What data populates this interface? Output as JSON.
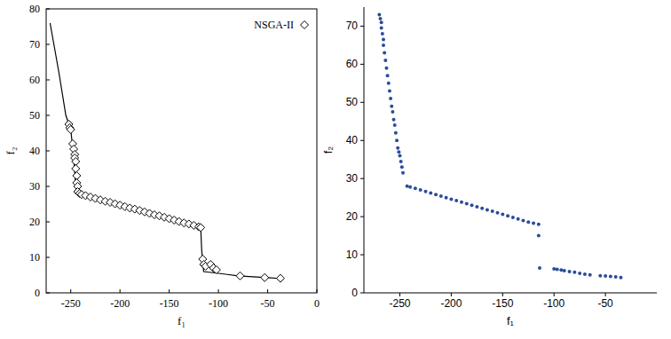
{
  "chart_data": [
    {
      "type": "line",
      "xlabel": "f₁",
      "ylabel": "f₂",
      "xlim": [
        -275,
        0
      ],
      "xticks": [
        -250,
        -200,
        -150,
        -100,
        -50,
        0
      ],
      "ylim": [
        0,
        80
      ],
      "yticks": [
        0,
        10,
        20,
        30,
        40,
        50,
        60,
        70,
        80
      ],
      "grid": false,
      "legend": "upper right",
      "series": [
        {
          "type": "line",
          "color": "#000000",
          "line_style": "solid",
          "x": [
            -271,
            -262,
            -255,
            -250,
            -247,
            -245,
            -243,
            -118,
            -117,
            -115,
            -100,
            -80,
            -50,
            -35
          ],
          "values": [
            76,
            62,
            50,
            46,
            38,
            30,
            28,
            18.5,
            12,
            6,
            5.5,
            4.8,
            4.3,
            4
          ]
        },
        {
          "name": "NSGA-II",
          "type": "scatter",
          "marker": "diamond",
          "color": "#000000",
          "x": [
            -252,
            -251,
            -250,
            -248,
            -247,
            -246,
            -246,
            -245,
            -245,
            -244,
            -244,
            -243,
            -243,
            -241,
            -239,
            -235,
            -230,
            -225,
            -220,
            -215,
            -210,
            -205,
            -200,
            -195,
            -190,
            -185,
            -180,
            -175,
            -170,
            -165,
            -160,
            -155,
            -150,
            -145,
            -140,
            -135,
            -130,
            -125,
            -120,
            -118,
            -116,
            -115,
            -113,
            -108,
            -105,
            -102,
            -78,
            -53,
            -37
          ],
          "values": [
            47.5,
            46.5,
            46,
            42,
            40.5,
            39,
            38,
            37,
            35,
            33,
            31,
            30,
            28.5,
            28,
            27.7,
            27.4,
            27.0,
            26.6,
            26.2,
            25.8,
            25.5,
            25.1,
            24.7,
            24.3,
            23.9,
            23.6,
            23.2,
            22.8,
            22.4,
            22.0,
            21.7,
            21.3,
            20.9,
            20.5,
            20.1,
            19.7,
            19.4,
            19.0,
            18.6,
            18.4,
            9.5,
            8,
            7.5,
            8,
            7,
            6.5,
            4.8,
            4.3,
            4.1
          ]
        }
      ]
    },
    {
      "type": "scatter",
      "xlabel": "f₁",
      "ylabel": "f₂",
      "xlim": [
        -285,
        0
      ],
      "xticks": [
        -250,
        -200,
        -150,
        -100,
        -50
      ],
      "ylim": [
        0,
        75
      ],
      "yticks": [
        0,
        10,
        20,
        30,
        40,
        50,
        60,
        70
      ],
      "grid": false,
      "series": [
        {
          "type": "scatter",
          "marker": "circle",
          "color": "#2b4c9b",
          "x": [
            -270,
            -269,
            -268,
            -268,
            -267,
            -266,
            -266,
            -265,
            -264,
            -263,
            -262,
            -261,
            -260,
            -259,
            -258,
            -257,
            -256,
            -255,
            -254,
            -253,
            -252,
            -251,
            -250,
            -249,
            -248,
            -247,
            -243,
            -240,
            -235,
            -230,
            -225,
            -220,
            -215,
            -210,
            -205,
            -200,
            -195,
            -190,
            -185,
            -180,
            -175,
            -170,
            -165,
            -160,
            -155,
            -150,
            -145,
            -140,
            -135,
            -130,
            -125,
            -120,
            -115,
            -115,
            -114,
            -100,
            -97,
            -93,
            -90,
            -85,
            -80,
            -75,
            -70,
            -65,
            -55,
            -50,
            -45,
            -40,
            -35
          ],
          "values": [
            73,
            72,
            71,
            69.5,
            68,
            66.5,
            65,
            63,
            61,
            59,
            57,
            55,
            53,
            51,
            49,
            47.5,
            45.5,
            44,
            42,
            40,
            38,
            37,
            36,
            34.5,
            33,
            31.5,
            28,
            27.8,
            27.4,
            27,
            26.6,
            26.2,
            25.8,
            25.4,
            25,
            24.6,
            24.2,
            23.8,
            23.4,
            23,
            22.6,
            22.2,
            21.8,
            21.4,
            21,
            20.6,
            20.2,
            19.8,
            19.4,
            19,
            18.6,
            18.3,
            18,
            15,
            6.5,
            6.3,
            6.2,
            6,
            5.8,
            5.6,
            5.4,
            5.1,
            4.9,
            4.7,
            4.5,
            4.4,
            4.3,
            4.2,
            4
          ]
        }
      ]
    }
  ]
}
